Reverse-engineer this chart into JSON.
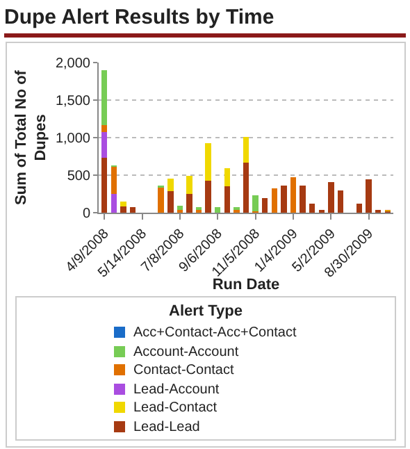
{
  "chart_data": {
    "type": "bar",
    "title": "Dupe Alert Results by Time",
    "xlabel": "Run Date",
    "ylabel": "Sum of Total No of Dupes",
    "legend_title": "Alert Type",
    "categories": [
      "4/9/2008",
      null,
      null,
      null,
      "5/14/2008",
      null,
      null,
      null,
      "7/8/2008",
      null,
      null,
      null,
      "9/6/2008",
      null,
      null,
      null,
      "11/5/2008",
      null,
      null,
      null,
      "1/4/2009",
      null,
      null,
      null,
      "5/2/2009",
      null,
      null,
      null,
      "8/30/2009",
      null,
      null
    ],
    "stacked": true,
    "series": [
      {
        "name": "Lead-Lead",
        "color": "#a63a12",
        "values": [
          730,
          null,
          80,
          70,
          null,
          null,
          null,
          290,
          null,
          250,
          null,
          430,
          null,
          350,
          null,
          670,
          null,
          190,
          null,
          360,
          null,
          360,
          120,
          40,
          410,
          300,
          null,
          120,
          440,
          40,
          20
        ]
      },
      {
        "name": "Lead-Contact",
        "color": "#f0d800",
        "values": [
          null,
          null,
          70,
          null,
          null,
          null,
          null,
          160,
          null,
          240,
          null,
          500,
          null,
          240,
          null,
          340,
          null,
          null,
          null,
          null,
          null,
          null,
          null,
          null,
          null,
          null,
          null,
          null,
          null,
          null,
          10
        ]
      },
      {
        "name": "Lead-Account",
        "color": "#a94de0",
        "values": [
          340,
          250,
          null,
          null,
          null,
          null,
          null,
          null,
          null,
          null,
          null,
          null,
          null,
          null,
          null,
          null,
          null,
          null,
          null,
          null,
          null,
          null,
          null,
          null,
          null,
          null,
          null,
          null,
          null,
          null,
          null
        ]
      },
      {
        "name": "Contact-Contact",
        "color": "#e07000",
        "values": [
          100,
          360,
          null,
          null,
          null,
          null,
          330,
          null,
          40,
          null,
          40,
          null,
          null,
          null,
          40,
          null,
          20,
          null,
          320,
          null,
          470,
          null,
          null,
          null,
          null,
          null,
          null,
          null,
          null,
          null,
          10
        ]
      },
      {
        "name": "Account-Account",
        "color": "#77cc55",
        "values": [
          730,
          20,
          null,
          null,
          null,
          null,
          30,
          null,
          50,
          null,
          30,
          null,
          70,
          null,
          30,
          null,
          210,
          null,
          null,
          null,
          null,
          null,
          null,
          null,
          null,
          null,
          null,
          null,
          null,
          null,
          null
        ]
      },
      {
        "name": "Acc+Contact-Acc+Contact",
        "color": "#1a6cc8",
        "values": [
          null,
          null,
          null,
          null,
          null,
          null,
          null,
          null,
          null,
          null,
          null,
          null,
          null,
          null,
          null,
          null,
          null,
          null,
          null,
          null,
          null,
          null,
          null,
          null,
          null,
          null,
          null,
          null,
          null,
          null,
          null
        ]
      }
    ],
    "ylim": [
      0,
      2000
    ],
    "yticks": [
      0,
      500,
      {
        "value": 1000,
        "label": "1,000"
      },
      {
        "value": 1500,
        "label": "1,500"
      },
      {
        "value": 2000,
        "label": "2,000"
      }
    ],
    "grid": "y",
    "legend": "bottom"
  }
}
